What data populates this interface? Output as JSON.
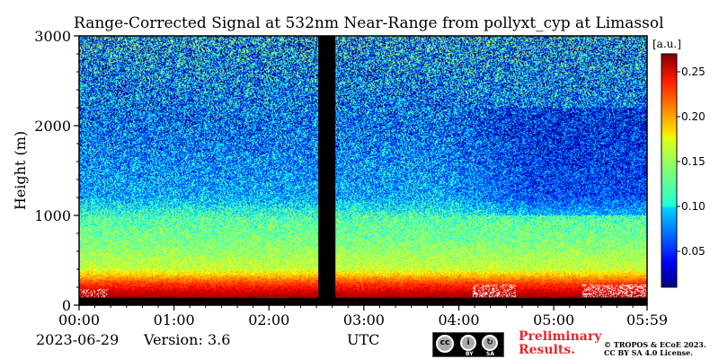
{
  "chart_data": {
    "type": "heatmap",
    "title": "Range-Corrected Signal at 532nm Near-Range from pollyxt_cyp at Limassol",
    "xlabel": "UTC",
    "ylabel": "Height (m)",
    "x_ticks": [
      "00:00",
      "01:00",
      "02:00",
      "03:00",
      "04:00",
      "05:00",
      "05:59"
    ],
    "x_range_hours": [
      0,
      5.983
    ],
    "y_ticks": [
      0,
      1000,
      2000,
      3000
    ],
    "y_range_m": [
      0,
      3000
    ],
    "colorbar": {
      "unit": "[a.u.]",
      "ticks": [
        0.05,
        0.1,
        0.15,
        0.2,
        0.25
      ],
      "tick_labels": [
        "0.05",
        "0.10",
        "0.15",
        "0.20",
        "0.25"
      ],
      "range": [
        0.01,
        0.27
      ],
      "colormap": "jet"
    },
    "no_data_gap_hours": [
      2.52,
      2.7
    ],
    "description_profile": [
      {
        "height_m": 100,
        "value": 0.26
      },
      {
        "height_m": 250,
        "value": 0.22
      },
      {
        "height_m": 400,
        "value": 0.16
      },
      {
        "height_m": 700,
        "value": 0.14
      },
      {
        "height_m": 950,
        "value": 0.13
      },
      {
        "height_m": 1200,
        "value": 0.09
      },
      {
        "height_m": 2000,
        "value": 0.07
      },
      {
        "height_m": 3000,
        "value": 0.08
      }
    ]
  },
  "footer": {
    "date": "2023-06-29",
    "version": "Version: 3.6",
    "preliminary_line1": "Preliminary",
    "preliminary_line2": "Results.",
    "copyright_line1": "© TROPOS & ECoE 2023.",
    "copyright_line2": "CC BY SA 4.0 License.",
    "license_by": "BY",
    "license_sa": "SA"
  }
}
